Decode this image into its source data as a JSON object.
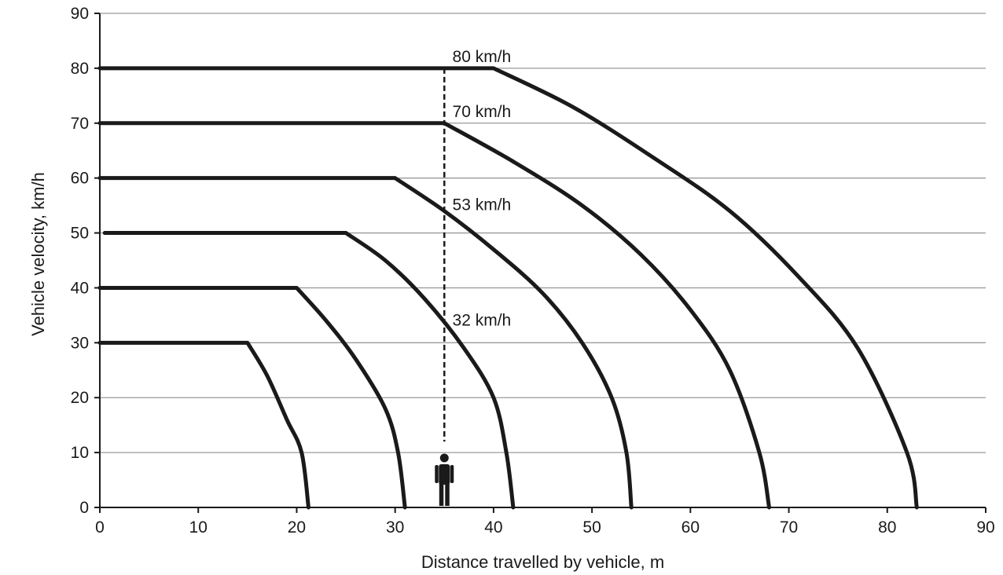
{
  "chart_data": {
    "type": "line",
    "xlabel": "Distance travelled by vehicle, m",
    "ylabel": "Vehicle velocity, km/h",
    "xlim": [
      0,
      90
    ],
    "ylim": [
      0,
      90
    ],
    "xticks": [
      0,
      10,
      20,
      30,
      40,
      50,
      60,
      70,
      80,
      90
    ],
    "yticks": [
      0,
      10,
      20,
      30,
      40,
      50,
      60,
      70,
      80,
      90
    ],
    "grid": "horizontal",
    "series": [
      {
        "reaction_end": 15,
        "x": [
          0,
          15,
          17,
          19,
          20.5,
          21.2
        ],
        "y": [
          30,
          30,
          24,
          16,
          10,
          0
        ]
      },
      {
        "reaction_end": 20,
        "x": [
          0,
          20,
          23,
          26,
          29,
          30.3,
          31
        ],
        "y": [
          40,
          40,
          34,
          27,
          18,
          10,
          0
        ]
      },
      {
        "reaction_end": 25,
        "x": [
          0.5,
          25,
          29,
          33,
          37,
          40,
          41.3,
          42
        ],
        "y": [
          50,
          50,
          45,
          38,
          29,
          20,
          10,
          0
        ]
      },
      {
        "reaction_end": 30,
        "x": [
          0,
          30,
          35,
          40,
          45,
          49,
          52,
          53.5,
          54
        ],
        "y": [
          60,
          60,
          54,
          47,
          39,
          30,
          20,
          10,
          0
        ]
      },
      {
        "reaction_end": 35,
        "x": [
          0,
          35,
          42,
          49,
          55,
          60,
          64,
          67,
          68
        ],
        "y": [
          70,
          70,
          63,
          55,
          46,
          36,
          25,
          10,
          0
        ]
      },
      {
        "reaction_end": 40,
        "x": [
          0,
          40,
          48,
          56,
          64,
          71,
          77,
          82,
          83
        ],
        "y": [
          80,
          80,
          73,
          64,
          54,
          42,
          29,
          10,
          0
        ]
      }
    ],
    "pedestrian_x": 35,
    "marker_line": {
      "x": 35,
      "y": [
        12,
        80
      ]
    },
    "annotations": [
      {
        "text": "80 km/h",
        "x": 35.5,
        "y": 80
      },
      {
        "text": "70 km/h",
        "x": 35.5,
        "y": 70
      },
      {
        "text": "53 km/h",
        "x": 35.5,
        "y": 53
      },
      {
        "text": "32 km/h",
        "x": 35.5,
        "y": 32
      }
    ]
  }
}
